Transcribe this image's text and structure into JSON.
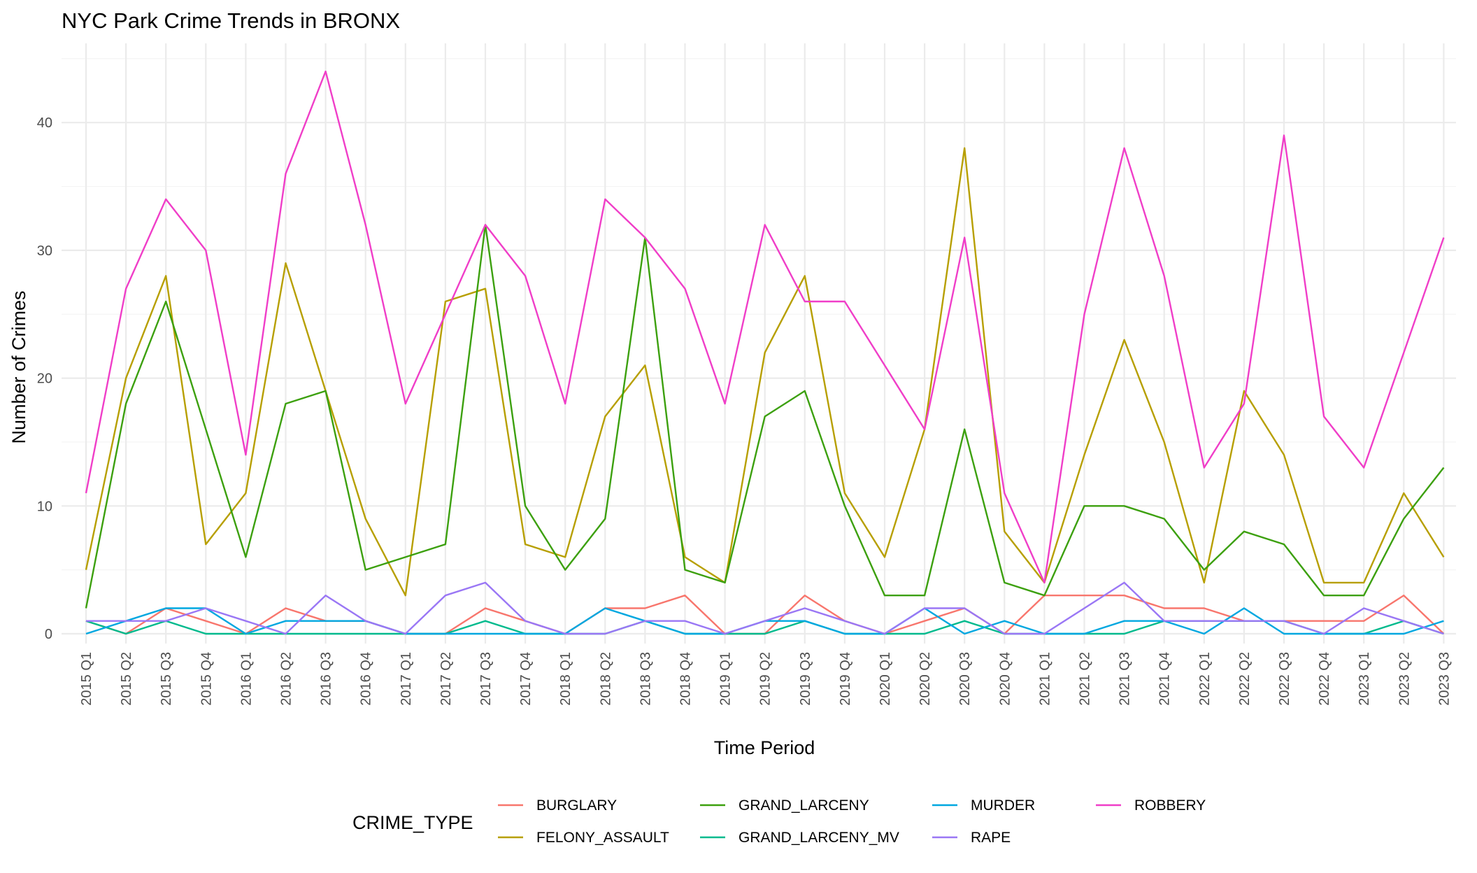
{
  "chart_data": {
    "type": "line",
    "title": "NYC Park Crime Trends in BRONX",
    "xlabel": "Time Period",
    "ylabel": "Number of Crimes",
    "ylim": [
      0,
      46
    ],
    "yticks": [
      0,
      10,
      20,
      30,
      40
    ],
    "grid": true,
    "legend_title": "CRIME_TYPE",
    "legend_position": "bottom",
    "categories": [
      "2015 Q1",
      "2015 Q2",
      "2015 Q3",
      "2015 Q4",
      "2016 Q1",
      "2016 Q2",
      "2016 Q3",
      "2016 Q4",
      "2017 Q1",
      "2017 Q2",
      "2017 Q3",
      "2017 Q4",
      "2018 Q1",
      "2018 Q2",
      "2018 Q3",
      "2018 Q4",
      "2019 Q1",
      "2019 Q2",
      "2019 Q3",
      "2019 Q4",
      "2020 Q1",
      "2020 Q2",
      "2020 Q3",
      "2020 Q4",
      "2021 Q1",
      "2021 Q2",
      "2021 Q3",
      "2021 Q4",
      "2022 Q1",
      "2022 Q2",
      "2022 Q3",
      "2022 Q4",
      "2023 Q1",
      "2023 Q2",
      "2023 Q3"
    ],
    "series": [
      {
        "name": "BURGLARY",
        "color": "#F8766D",
        "values": [
          1,
          0,
          2,
          1,
          0,
          2,
          1,
          1,
          0,
          0,
          2,
          1,
          0,
          2,
          2,
          3,
          0,
          0,
          3,
          1,
          0,
          1,
          2,
          0,
          3,
          3,
          3,
          2,
          2,
          1,
          1,
          1,
          1,
          3,
          0
        ]
      },
      {
        "name": "FELONY_ASSAULT",
        "color": "#B79F00",
        "values": [
          5,
          20,
          28,
          7,
          11,
          29,
          19,
          9,
          3,
          26,
          27,
          7,
          6,
          17,
          21,
          6,
          4,
          22,
          28,
          11,
          6,
          16,
          38,
          8,
          4,
          14,
          23,
          15,
          4,
          19,
          14,
          4,
          4,
          11,
          6
        ]
      },
      {
        "name": "GRAND_LARCENY",
        "color": "#3CA00E",
        "values": [
          2,
          18,
          26,
          16,
          6,
          18,
          19,
          5,
          6,
          7,
          32,
          10,
          5,
          9,
          31,
          5,
          4,
          17,
          19,
          10,
          3,
          3,
          16,
          4,
          3,
          10,
          10,
          9,
          5,
          8,
          7,
          3,
          3,
          9,
          13
        ]
      },
      {
        "name": "GRAND_LARCENY_MV",
        "color": "#00BA8D",
        "values": [
          1,
          0,
          1,
          0,
          0,
          0,
          0,
          0,
          0,
          0,
          1,
          0,
          0,
          0,
          1,
          0,
          0,
          0,
          1,
          0,
          0,
          0,
          1,
          0,
          0,
          0,
          0,
          1,
          1,
          1,
          1,
          0,
          0,
          1,
          0
        ]
      },
      {
        "name": "MURDER",
        "color": "#00A7E0",
        "values": [
          0,
          1,
          2,
          2,
          0,
          1,
          1,
          1,
          0,
          0,
          0,
          0,
          0,
          2,
          1,
          0,
          0,
          1,
          1,
          0,
          0,
          2,
          0,
          1,
          0,
          0,
          1,
          1,
          0,
          2,
          0,
          0,
          0,
          0,
          1
        ]
      },
      {
        "name": "RAPE",
        "color": "#9A77F5",
        "values": [
          1,
          1,
          1,
          2,
          1,
          0,
          3,
          1,
          0,
          3,
          4,
          1,
          0,
          0,
          1,
          1,
          0,
          1,
          2,
          1,
          0,
          2,
          2,
          0,
          0,
          2,
          4,
          1,
          1,
          1,
          1,
          0,
          2,
          1,
          0
        ]
      },
      {
        "name": "ROBBERY",
        "color": "#F03EC8",
        "values": [
          11,
          27,
          34,
          30,
          14,
          36,
          44,
          32,
          18,
          25,
          32,
          28,
          18,
          34,
          31,
          27,
          18,
          32,
          26,
          26,
          21,
          16,
          31,
          11,
          4,
          25,
          38,
          28,
          13,
          18,
          39,
          17,
          13,
          22,
          31
        ]
      }
    ]
  }
}
